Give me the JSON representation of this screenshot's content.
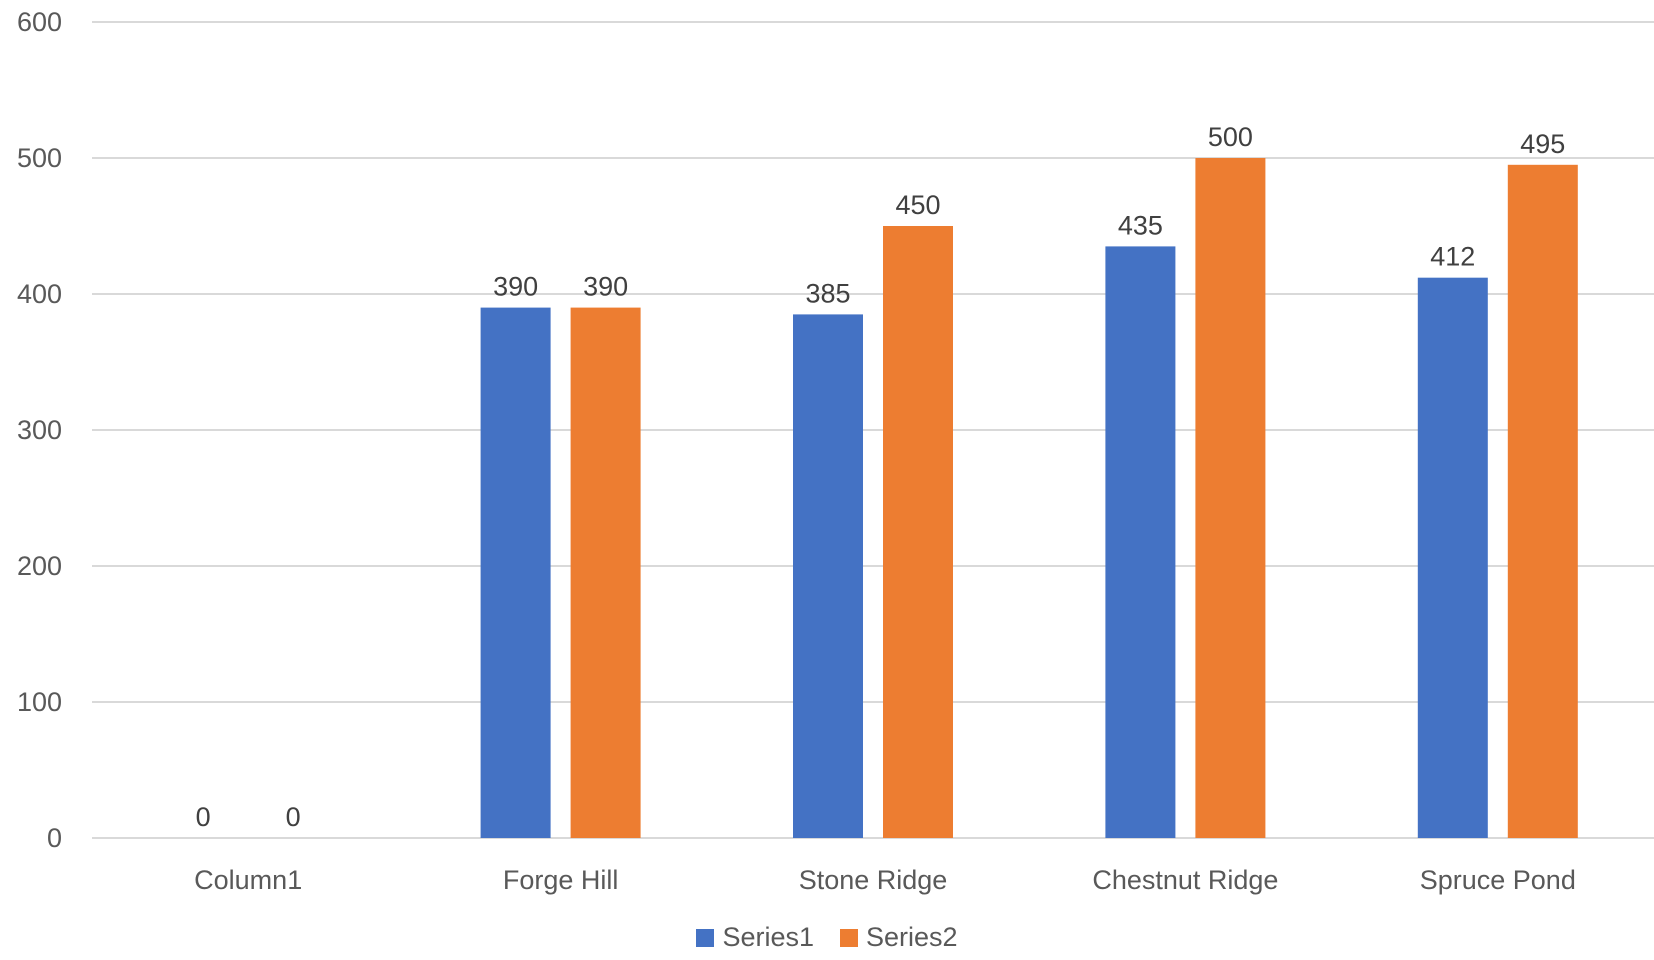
{
  "chart_data": {
    "type": "bar",
    "title": "",
    "xlabel": "",
    "ylabel": "",
    "categories": [
      "Column1",
      "Forge Hill",
      "Stone Ridge",
      "Chestnut Ridge",
      "Spruce Pond"
    ],
    "series": [
      {
        "name": "Series1",
        "color": "#4472c4",
        "values": [
          0,
          390,
          385,
          435,
          412
        ]
      },
      {
        "name": "Series2",
        "color": "#ed7d31",
        "values": [
          0,
          390,
          450,
          500,
          495
        ]
      }
    ],
    "ylim": [
      0,
      600
    ],
    "yticks": [
      0,
      100,
      200,
      300,
      400,
      500,
      600
    ],
    "grid": true,
    "data_labels": true,
    "legend_position": "bottom"
  }
}
